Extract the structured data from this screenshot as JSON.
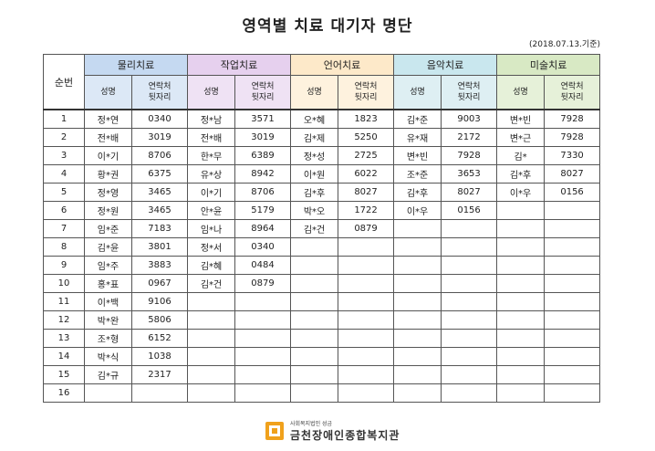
{
  "title": "영역별 치료 대기자 명단",
  "date_note": "(2018.07.13.기준)",
  "seq_header": "순번",
  "sub_headers": {
    "name": "성명",
    "contact_line1": "연락처",
    "contact_line2": "뒷자리"
  },
  "areas": [
    {
      "label": "물리치료",
      "color": "#c5d9f1"
    },
    {
      "label": "작업치료",
      "color": "#e6d0ee"
    },
    {
      "label": "언어치료",
      "color": "#fde9c9"
    },
    {
      "label": "음악치료",
      "color": "#c9e7ee"
    },
    {
      "label": "미술치료",
      "color": "#d8e9c4"
    }
  ],
  "rows": [
    {
      "seq": "1",
      "cells": [
        [
          "정*연",
          "0340"
        ],
        [
          "정*남",
          "3571"
        ],
        [
          "오*혜",
          "1823"
        ],
        [
          "김*준",
          "9003"
        ],
        [
          "변*빈",
          "7928"
        ]
      ]
    },
    {
      "seq": "2",
      "cells": [
        [
          "전*배",
          "3019"
        ],
        [
          "전*배",
          "3019"
        ],
        [
          "김*제",
          "5250"
        ],
        [
          "유*재",
          "2172"
        ],
        [
          "변*근",
          "7928"
        ]
      ]
    },
    {
      "seq": "3",
      "cells": [
        [
          "이*기",
          "8706"
        ],
        [
          "한*무",
          "6389"
        ],
        [
          "정*성",
          "2725"
        ],
        [
          "변*빈",
          "7928"
        ],
        [
          "김*",
          "7330"
        ]
      ]
    },
    {
      "seq": "4",
      "cells": [
        [
          "황*권",
          "6375"
        ],
        [
          "유*상",
          "8942"
        ],
        [
          "이*원",
          "6022"
        ],
        [
          "조*준",
          "3653"
        ],
        [
          "김*후",
          "8027"
        ]
      ]
    },
    {
      "seq": "5",
      "cells": [
        [
          "정*영",
          "3465"
        ],
        [
          "이*기",
          "8706"
        ],
        [
          "김*후",
          "8027"
        ],
        [
          "김*후",
          "8027"
        ],
        [
          "이*우",
          "0156"
        ]
      ]
    },
    {
      "seq": "6",
      "cells": [
        [
          "정*원",
          "3465"
        ],
        [
          "안*윤",
          "5179"
        ],
        [
          "박*오",
          "1722"
        ],
        [
          "이*우",
          "0156"
        ],
        [
          "",
          ""
        ]
      ]
    },
    {
      "seq": "7",
      "cells": [
        [
          "임*준",
          "7183"
        ],
        [
          "임*나",
          "8964"
        ],
        [
          "김*건",
          "0879"
        ],
        [
          "",
          ""
        ],
        [
          "",
          ""
        ]
      ]
    },
    {
      "seq": "8",
      "cells": [
        [
          "김*윤",
          "3801"
        ],
        [
          "정*서",
          "0340"
        ],
        [
          "",
          ""
        ],
        [
          "",
          ""
        ],
        [
          "",
          ""
        ]
      ]
    },
    {
      "seq": "9",
      "cells": [
        [
          "임*주",
          "3883"
        ],
        [
          "김*혜",
          "0484"
        ],
        [
          "",
          ""
        ],
        [
          "",
          ""
        ],
        [
          "",
          ""
        ]
      ]
    },
    {
      "seq": "10",
      "cells": [
        [
          "홍*표",
          "0967"
        ],
        [
          "김*건",
          "0879"
        ],
        [
          "",
          ""
        ],
        [
          "",
          ""
        ],
        [
          "",
          ""
        ]
      ]
    },
    {
      "seq": "11",
      "cells": [
        [
          "이*백",
          "9106"
        ],
        [
          "",
          ""
        ],
        [
          "",
          ""
        ],
        [
          "",
          ""
        ],
        [
          "",
          ""
        ]
      ]
    },
    {
      "seq": "12",
      "cells": [
        [
          "박*완",
          "5806"
        ],
        [
          "",
          ""
        ],
        [
          "",
          ""
        ],
        [
          "",
          ""
        ],
        [
          "",
          ""
        ]
      ]
    },
    {
      "seq": "13",
      "cells": [
        [
          "조*형",
          "6152"
        ],
        [
          "",
          ""
        ],
        [
          "",
          ""
        ],
        [
          "",
          ""
        ],
        [
          "",
          ""
        ]
      ]
    },
    {
      "seq": "14",
      "cells": [
        [
          "박*식",
          "1038"
        ],
        [
          "",
          ""
        ],
        [
          "",
          ""
        ],
        [
          "",
          ""
        ],
        [
          "",
          ""
        ]
      ]
    },
    {
      "seq": "15",
      "cells": [
        [
          "김*규",
          "2317"
        ],
        [
          "",
          ""
        ],
        [
          "",
          ""
        ],
        [
          "",
          ""
        ],
        [
          "",
          ""
        ]
      ]
    },
    {
      "seq": "16",
      "cells": [
        [
          "",
          ""
        ],
        [
          "",
          ""
        ],
        [
          "",
          ""
        ],
        [
          "",
          ""
        ],
        [
          "",
          ""
        ]
      ]
    }
  ],
  "footer": {
    "org_small": "사회복지법인 성금",
    "org_name": "금천장애인종합복지관",
    "logo_icon": "org-logo-icon",
    "logo_color": "#f0a11c"
  }
}
